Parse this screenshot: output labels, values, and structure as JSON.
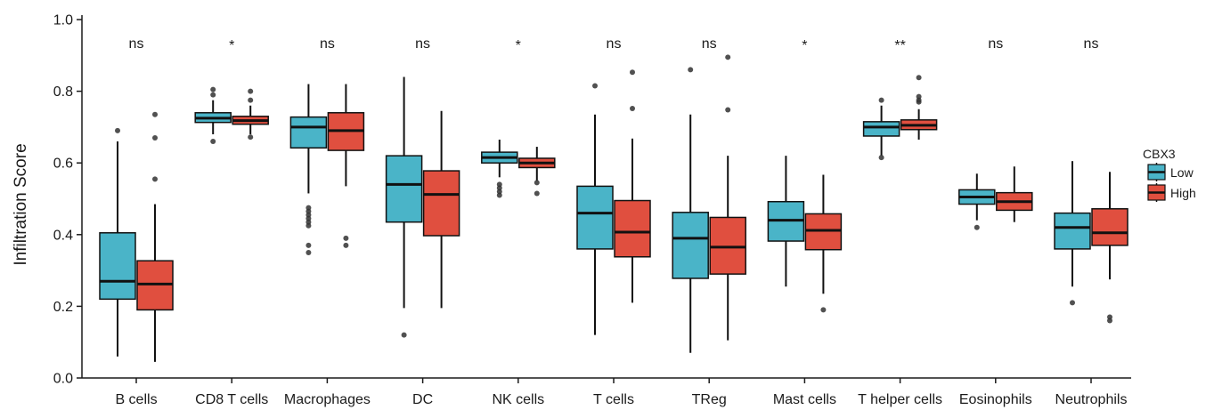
{
  "chart_data": {
    "type": "box",
    "ylabel": "Infiltration Score",
    "ylim": [
      0,
      1
    ],
    "yticks": [
      "0.0",
      "0.2",
      "0.4",
      "0.6",
      "0.8",
      "1.0"
    ],
    "yticks_values": [
      0,
      0.2,
      0.4,
      0.6,
      0.8,
      1.0
    ],
    "categories": [
      "B cells",
      "CD8 T cells",
      "Macrophages",
      "DC",
      "NK cells",
      "T cells",
      "TReg",
      "Mast cells",
      "T helper cells",
      "Eosinophils",
      "Neutrophils"
    ],
    "significance": [
      "ns",
      "*",
      "ns",
      "ns",
      "*",
      "ns",
      "ns",
      "*",
      "**",
      "ns",
      "ns"
    ],
    "legend": {
      "title": "CBX3",
      "placement": "right"
    },
    "series": [
      {
        "name": "Low",
        "color": "#4ab4c8",
        "boxes": [
          {
            "whisker_low": 0.06,
            "q1": 0.22,
            "median": 0.27,
            "q3": 0.405,
            "whisker_high": 0.66,
            "outliers": [
              0.69
            ]
          },
          {
            "whisker_low": 0.68,
            "q1": 0.713,
            "median": 0.725,
            "q3": 0.74,
            "whisker_high": 0.775,
            "outliers": [
              0.66,
              0.79,
              0.805
            ]
          },
          {
            "whisker_low": 0.515,
            "q1": 0.642,
            "median": 0.7,
            "q3": 0.728,
            "whisker_high": 0.82,
            "outliers": [
              0.35,
              0.37,
              0.425,
              0.435,
              0.445,
              0.455,
              0.465,
              0.475
            ]
          },
          {
            "whisker_low": 0.195,
            "q1": 0.435,
            "median": 0.54,
            "q3": 0.62,
            "whisker_high": 0.84,
            "outliers": [
              0.12
            ]
          },
          {
            "whisker_low": 0.56,
            "q1": 0.6,
            "median": 0.615,
            "q3": 0.63,
            "whisker_high": 0.665,
            "outliers": [
              0.51,
              0.52,
              0.53,
              0.54
            ]
          },
          {
            "whisker_low": 0.12,
            "q1": 0.36,
            "median": 0.46,
            "q3": 0.535,
            "whisker_high": 0.735,
            "outliers": [
              0.815
            ]
          },
          {
            "whisker_low": 0.07,
            "q1": 0.278,
            "median": 0.39,
            "q3": 0.462,
            "whisker_high": 0.735,
            "outliers": [
              0.86
            ]
          },
          {
            "whisker_low": 0.255,
            "q1": 0.382,
            "median": 0.44,
            "q3": 0.492,
            "whisker_high": 0.62,
            "outliers": []
          },
          {
            "whisker_low": 0.62,
            "q1": 0.675,
            "median": 0.7,
            "q3": 0.715,
            "whisker_high": 0.76,
            "outliers": [
              0.615,
              0.775
            ]
          },
          {
            "whisker_low": 0.44,
            "q1": 0.485,
            "median": 0.505,
            "q3": 0.525,
            "whisker_high": 0.57,
            "outliers": [
              0.42
            ]
          },
          {
            "whisker_low": 0.255,
            "q1": 0.36,
            "median": 0.42,
            "q3": 0.46,
            "whisker_high": 0.605,
            "outliers": [
              0.21
            ]
          }
        ]
      },
      {
        "name": "High",
        "color": "#e04f3f",
        "boxes": [
          {
            "whisker_low": 0.045,
            "q1": 0.19,
            "median": 0.262,
            "q3": 0.327,
            "whisker_high": 0.485,
            "outliers": [
              0.555,
              0.67,
              0.735
            ]
          },
          {
            "whisker_low": 0.68,
            "q1": 0.708,
            "median": 0.718,
            "q3": 0.73,
            "whisker_high": 0.76,
            "outliers": [
              0.672,
              0.775,
              0.8
            ]
          },
          {
            "whisker_low": 0.535,
            "q1": 0.635,
            "median": 0.69,
            "q3": 0.74,
            "whisker_high": 0.82,
            "outliers": [
              0.37,
              0.39
            ]
          },
          {
            "whisker_low": 0.195,
            "q1": 0.397,
            "median": 0.512,
            "q3": 0.578,
            "whisker_high": 0.745,
            "outliers": []
          },
          {
            "whisker_low": 0.55,
            "q1": 0.587,
            "median": 0.6,
            "q3": 0.613,
            "whisker_high": 0.645,
            "outliers": [
              0.515,
              0.545
            ]
          },
          {
            "whisker_low": 0.21,
            "q1": 0.338,
            "median": 0.407,
            "q3": 0.495,
            "whisker_high": 0.668,
            "outliers": [
              0.752,
              0.853
            ]
          },
          {
            "whisker_low": 0.105,
            "q1": 0.29,
            "median": 0.365,
            "q3": 0.448,
            "whisker_high": 0.62,
            "outliers": [
              0.748,
              0.895
            ]
          },
          {
            "whisker_low": 0.235,
            "q1": 0.358,
            "median": 0.412,
            "q3": 0.458,
            "whisker_high": 0.567,
            "outliers": [
              0.19
            ]
          },
          {
            "whisker_low": 0.665,
            "q1": 0.693,
            "median": 0.705,
            "q3": 0.72,
            "whisker_high": 0.75,
            "outliers": [
              0.77,
              0.775,
              0.785,
              0.838
            ]
          },
          {
            "whisker_low": 0.435,
            "q1": 0.468,
            "median": 0.492,
            "q3": 0.517,
            "whisker_high": 0.59,
            "outliers": []
          },
          {
            "whisker_low": 0.275,
            "q1": 0.37,
            "median": 0.405,
            "q3": 0.472,
            "whisker_high": 0.575,
            "outliers": [
              0.16,
              0.17
            ]
          }
        ]
      }
    ]
  }
}
